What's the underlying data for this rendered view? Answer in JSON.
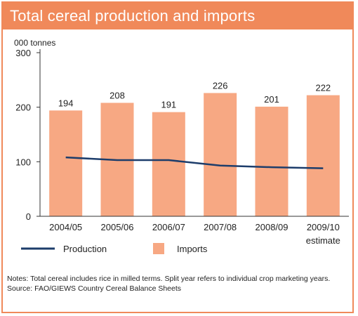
{
  "header": {
    "title": "Total cereal production and imports"
  },
  "chart_data": {
    "type": "bar",
    "unit_label": "000 tonnes",
    "categories": [
      "2004/05",
      "2005/06",
      "2006/07",
      "2007/08",
      "2008/09",
      "2009/10"
    ],
    "category_sublabel": "estimate",
    "series": [
      {
        "name": "Imports",
        "type": "bar",
        "values": [
          194,
          208,
          191,
          226,
          201,
          222
        ]
      },
      {
        "name": "Production",
        "type": "line",
        "values": [
          108,
          103,
          103,
          93,
          90,
          88
        ]
      }
    ],
    "data_labels": [
      "194",
      "208",
      "191",
      "226",
      "201",
      "222"
    ],
    "ylim": [
      0,
      300
    ],
    "yticks": [
      0,
      100,
      200,
      300
    ],
    "legend": {
      "placement": "bottom"
    },
    "colors": {
      "bar": "#f7a883",
      "line": "#1d3d6b",
      "frame": "#f0895a",
      "axis": "#333333"
    },
    "grid": false
  },
  "notes": {
    "line1": "Notes: Total cereal includes rice in milled terms. Split year refers to individual crop marketing years.",
    "source": "Source: FAO/GIEWS Country Cereal Balance Sheets"
  }
}
